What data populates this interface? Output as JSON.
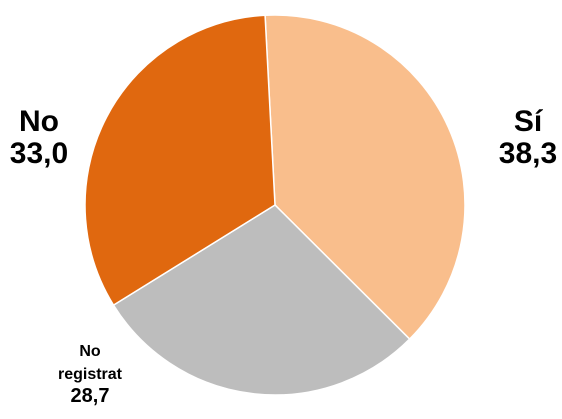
{
  "chart_data": {
    "type": "pie",
    "slices": [
      {
        "label": "Sí",
        "value": 38.3,
        "display": "38,3",
        "color": "#F9BE8C"
      },
      {
        "label": "No registrat",
        "value": 28.7,
        "display": "28,7",
        "color": "#BDBDBD"
      },
      {
        "label": "No",
        "value": 33.0,
        "display": "33,0",
        "color": "#E0680F"
      }
    ],
    "labels": {
      "si_name": "Sí",
      "si_value": "38,3",
      "no_name": "No",
      "no_value": "33,0",
      "nr_name_line1": "No",
      "nr_name_line2": "registrat",
      "nr_value": "28,7"
    },
    "start_angle_deg": -3,
    "direction": "clockwise"
  }
}
